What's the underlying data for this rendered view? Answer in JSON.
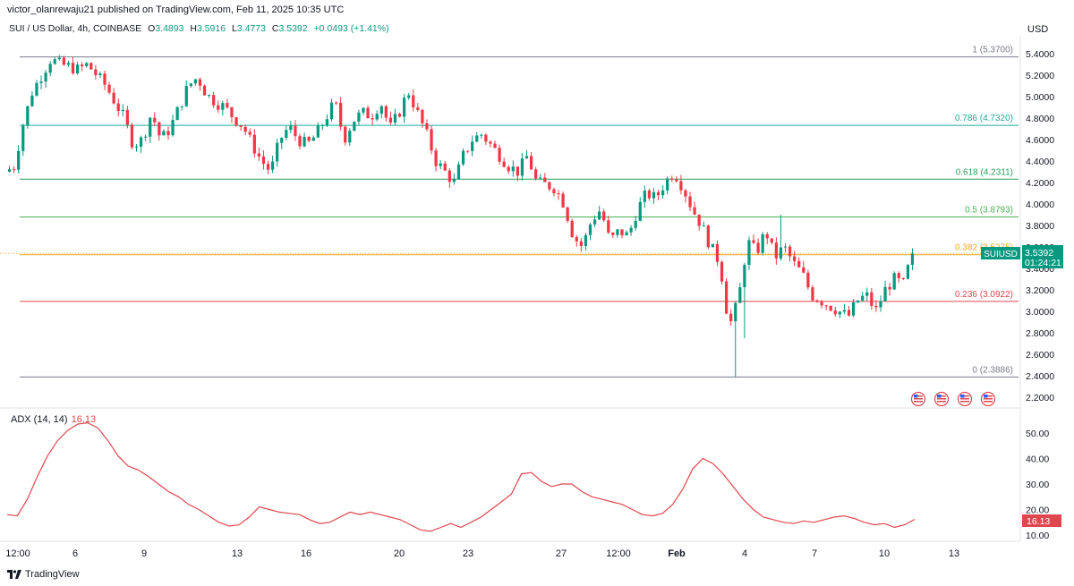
{
  "header": {
    "published": "victor_olanrewaju21 published on TradingView.com, Feb 11, 2025 10:35 UTC",
    "symbol": "SUI / US Dollar, 4h, COINBASE",
    "o_label": "O",
    "o_value": "3.4893",
    "h_label": "H",
    "h_value": "3.5916",
    "l_label": "L",
    "l_value": "3.4773",
    "c_label": "C",
    "c_value": "3.5392",
    "change": "+0.0493 (+1.41%)",
    "currency": "USD"
  },
  "colors": {
    "up": "#089981",
    "down": "#f23645",
    "adx": "#e0464e",
    "price_line": "#f0a830"
  },
  "price_tag": {
    "symbol": "SUIUSD",
    "price": "3.5392",
    "countdown": "01:24:21"
  },
  "adx_tag": "16.13",
  "adx_label": {
    "name": "ADX (14, 14)",
    "value": "16.13"
  },
  "branding": "TradingView",
  "events_icons": [
    "us-flag-icon",
    "us-flag-icon",
    "us-flag-icon",
    "us-flag-icon"
  ],
  "chart_data": [
    {
      "type": "candlestick",
      "ylim": [
        2.2,
        5.5
      ],
      "yticks": [
        "5.4000",
        "5.2000",
        "5.0000",
        "4.8000",
        "4.6000",
        "4.4000",
        "4.2000",
        "4.0000",
        "3.8000",
        "3.6000",
        "3.4000",
        "3.2000",
        "3.0000",
        "2.8000",
        "2.6000",
        "2.4000",
        "2.2000"
      ],
      "xticks": [
        "12:00",
        "6",
        "9",
        "13",
        "16",
        "20",
        "23",
        "27",
        "12:00",
        "Feb",
        "4",
        "7",
        "10",
        "13"
      ],
      "fib_levels": [
        {
          "label": "1 (5.3700)",
          "value": 5.37,
          "color": "#787b86"
        },
        {
          "label": "0.786 (4.7320)",
          "value": 4.732,
          "color": "#22ab94"
        },
        {
          "label": "0.618 (4.2311)",
          "value": 4.2311,
          "color": "#2e9e5b"
        },
        {
          "label": "0.5 (3.8793)",
          "value": 3.8793,
          "color": "#4caf50"
        },
        {
          "label": "0.382 (3.5275)",
          "value": 3.5275,
          "color": "#f5a623"
        },
        {
          "label": "0.236 (3.0922)",
          "value": 3.0922,
          "color": "#e0464e"
        },
        {
          "label": "0 (2.3886)",
          "value": 2.3886,
          "color": "#787b86"
        }
      ],
      "price_path": [
        4.3,
        4.35,
        4.75,
        5.05,
        5.2,
        5.35,
        5.3,
        5.28,
        5.25,
        5.3,
        5.2,
        5.1,
        4.95,
        4.8,
        4.55,
        4.6,
        4.85,
        4.6,
        4.7,
        4.9,
        5.1,
        5.18,
        5.02,
        4.95,
        4.9,
        4.8,
        4.72,
        4.55,
        4.4,
        4.3,
        4.6,
        4.72,
        4.6,
        4.55,
        4.65,
        4.8,
        4.95,
        4.6,
        4.78,
        4.85,
        4.82,
        4.95,
        4.7,
        4.85,
        5.05,
        4.85,
        4.65,
        4.4,
        4.3,
        4.2,
        4.45,
        4.6,
        4.65,
        4.55,
        4.45,
        4.35,
        4.3,
        4.45,
        4.2,
        4.18,
        4.15,
        4.0,
        3.7,
        3.6,
        3.85,
        3.95,
        3.65,
        3.75,
        3.7,
        3.95,
        4.1,
        4.05,
        4.2,
        4.3,
        4.15,
        3.95,
        3.8,
        3.6,
        3.45,
        2.85,
        3.1,
        3.65,
        3.55,
        3.75,
        3.5,
        3.6,
        3.45,
        3.35,
        3.15,
        3.1,
        3.05,
        3.0,
        2.95,
        3.1,
        3.15,
        3.0,
        3.2,
        3.3,
        3.25,
        3.54
      ]
    },
    {
      "type": "line",
      "series": [
        {
          "name": "ADX (14, 14)"
        }
      ],
      "ylim": [
        8,
        57
      ],
      "yticks": [
        "50.00",
        "40.00",
        "30.00",
        "20.00",
        "10.00"
      ],
      "values": [
        18,
        17.5,
        24,
        33,
        41,
        47,
        51,
        53.5,
        54,
        52,
        47,
        41,
        37,
        35.5,
        33,
        30,
        27,
        25,
        22,
        20,
        17.5,
        15,
        13.5,
        14,
        17,
        21,
        20,
        19,
        18.5,
        18,
        16,
        14.5,
        15,
        17,
        19,
        18,
        19,
        18,
        17,
        16,
        14,
        12,
        11.5,
        13,
        14.5,
        13,
        15,
        17,
        20,
        23,
        26,
        34,
        34.5,
        31,
        29,
        30,
        30,
        27,
        25,
        24,
        23,
        22,
        20,
        18,
        17.5,
        18.5,
        22,
        28,
        36,
        40,
        38,
        34,
        29,
        24,
        20,
        17,
        16,
        15,
        14.5,
        15.5,
        15,
        16,
        17,
        17.5,
        16.5,
        15,
        14,
        14.5,
        13,
        14,
        16.13
      ]
    }
  ]
}
